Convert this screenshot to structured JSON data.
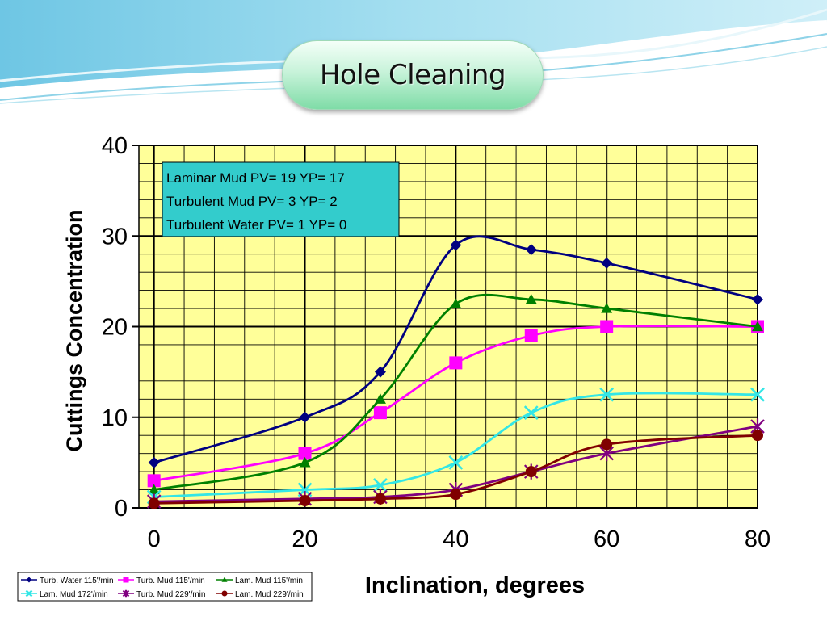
{
  "slide": {
    "title": "Hole Cleaning"
  },
  "colors": {
    "plot_background": "#ffff99",
    "annotation_background": "#33cccc",
    "title_pill": "#8fe0b4"
  },
  "chart_data": {
    "type": "line",
    "xlabel": "Inclination, degrees",
    "ylabel": "Cuttings Concentration",
    "xlim": [
      -2,
      80
    ],
    "ylim": [
      0,
      40
    ],
    "x_ticks": [
      "0",
      "20",
      "40",
      "60",
      "80"
    ],
    "y_ticks": [
      "0",
      "10",
      "20",
      "30",
      "40"
    ],
    "grid": true,
    "legend_position": "bottom-left",
    "annotation": [
      "Laminar Mud PV= 19 YP= 17",
      "Turbulent Mud PV= 3 YP= 2",
      "Turbulent Water PV= 1 YP= 0"
    ],
    "series": [
      {
        "name": "Turb. Water 115'/min",
        "color": "#000080",
        "marker": "diamond",
        "x": [
          0,
          20,
          30,
          40,
          50,
          60,
          80
        ],
        "y": [
          5,
          10,
          15,
          29,
          28.5,
          27,
          23
        ]
      },
      {
        "name": "Turb. Mud 115'/min",
        "color": "#ff00ff",
        "marker": "square",
        "x": [
          0,
          20,
          30,
          40,
          50,
          60,
          80
        ],
        "y": [
          3,
          6,
          10.5,
          16,
          19,
          20,
          20
        ]
      },
      {
        "name": "Lam. Mud 115'/min",
        "color": "#008000",
        "marker": "triangle",
        "x": [
          0,
          20,
          30,
          40,
          50,
          60,
          80
        ],
        "y": [
          2,
          5,
          12,
          22.5,
          23,
          22,
          20
        ]
      },
      {
        "name": "Lam. Mud 172'/min",
        "color": "#33e6e6",
        "marker": "x",
        "x": [
          0,
          20,
          30,
          40,
          50,
          60,
          80
        ],
        "y": [
          1.2,
          2,
          2.5,
          5,
          10.5,
          12.5,
          12.5
        ]
      },
      {
        "name": "Turb. Mud 229'/min",
        "color": "#800080",
        "marker": "star",
        "x": [
          0,
          20,
          30,
          40,
          50,
          60,
          80
        ],
        "y": [
          0.7,
          1,
          1.2,
          2,
          4,
          6,
          9
        ]
      },
      {
        "name": "Lam. Mud 229'/min",
        "color": "#800000",
        "marker": "circle",
        "x": [
          0,
          20,
          30,
          40,
          50,
          60,
          80
        ],
        "y": [
          0.5,
          0.8,
          1,
          1.5,
          4,
          7,
          8
        ]
      }
    ]
  }
}
